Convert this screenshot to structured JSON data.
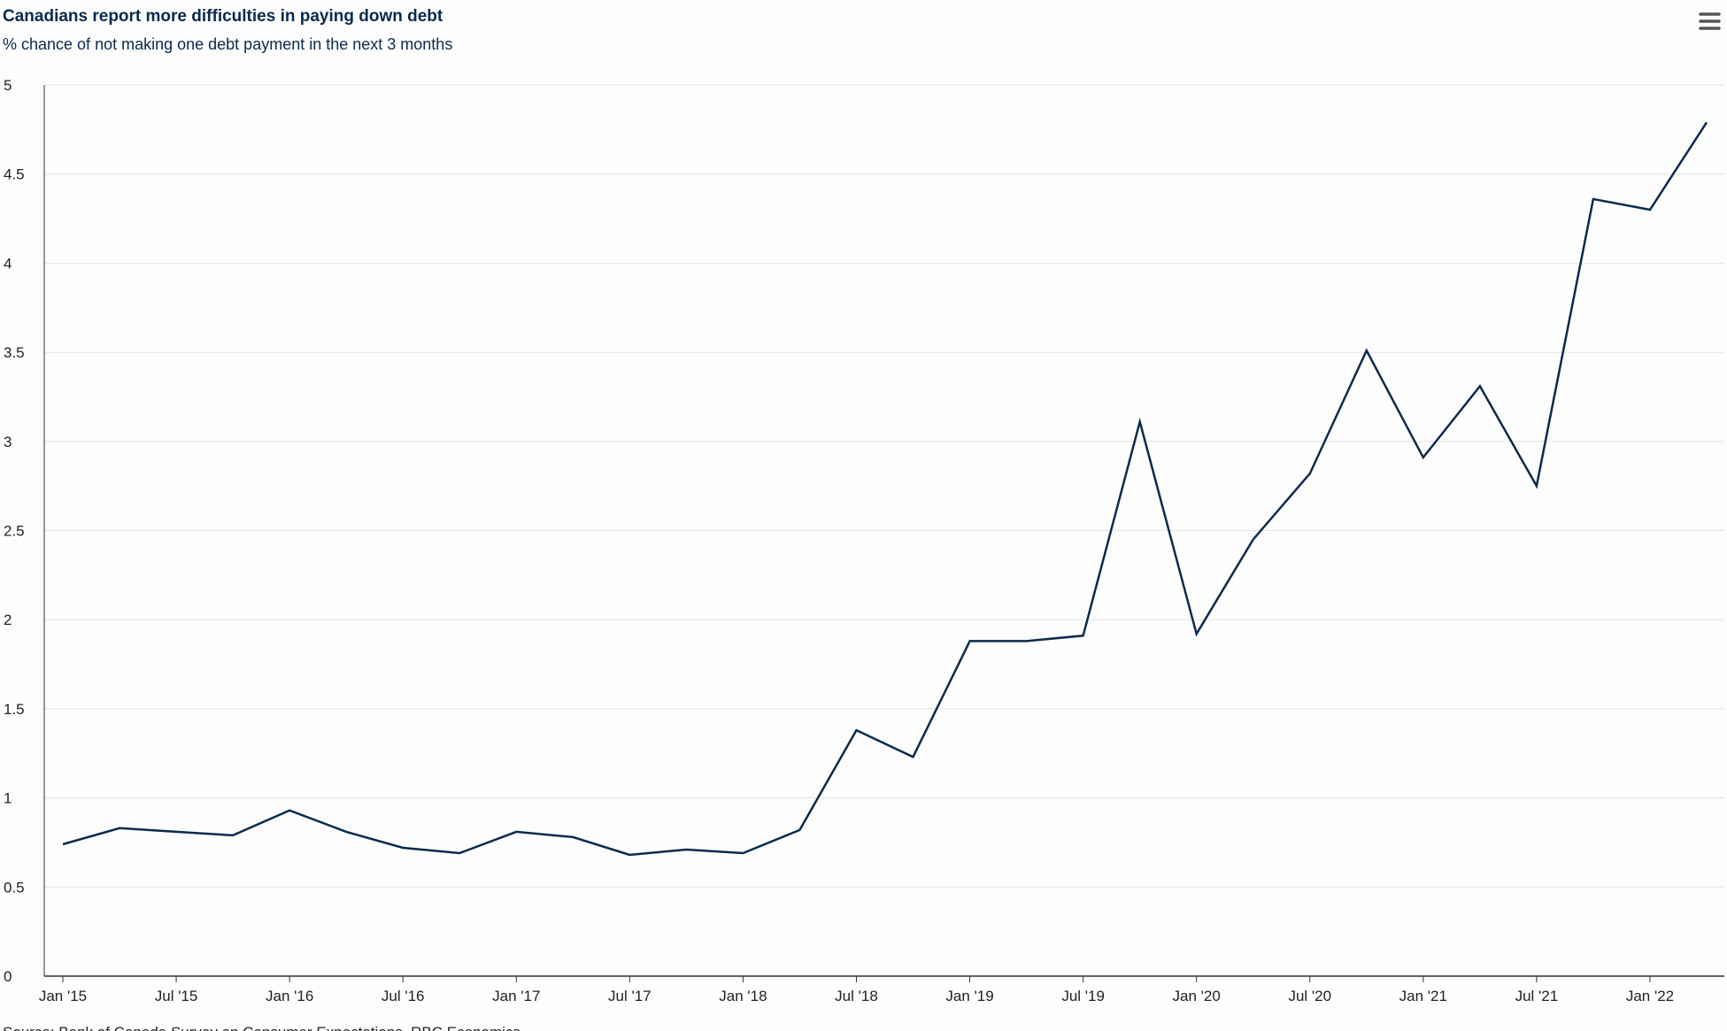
{
  "chart_data": {
    "type": "line",
    "title": "Canadians report more difficulties in paying down debt",
    "subtitle": "% chance of not making one debt payment in the next 3 months",
    "source": "Source: Bank of Canada Survey on Consumer Expectations, RBC Economics",
    "categories": [
      "Jan '15",
      null,
      "Jul '15",
      null,
      "Jan '16",
      null,
      "Jul '16",
      null,
      "Jan '17",
      null,
      "Jul '17",
      null,
      "Jan '18",
      null,
      "Jul '18",
      null,
      "Jan '19",
      null,
      "Jul '19",
      null,
      "Jan '20",
      null,
      "Jul '20",
      null,
      "Jan '21",
      null,
      "Jul '21",
      null,
      "Jan '22",
      null
    ],
    "series": [
      {
        "color": "#0b2a4e",
        "values": [
          0.74,
          0.83,
          0.81,
          0.79,
          0.93,
          0.81,
          0.72,
          0.69,
          0.81,
          0.78,
          0.68,
          0.71,
          0.69,
          0.82,
          1.38,
          1.23,
          1.88,
          1.88,
          1.91,
          3.11,
          1.92,
          2.45,
          2.82,
          3.51,
          2.91,
          3.31,
          2.75,
          4.36,
          4.3,
          4.79
        ]
      }
    ],
    "ylim": [
      0,
      5
    ],
    "yticks": [
      0,
      0.5,
      1,
      1.5,
      2,
      2.5,
      3,
      3.5,
      4,
      4.5,
      5
    ],
    "grid": true
  }
}
